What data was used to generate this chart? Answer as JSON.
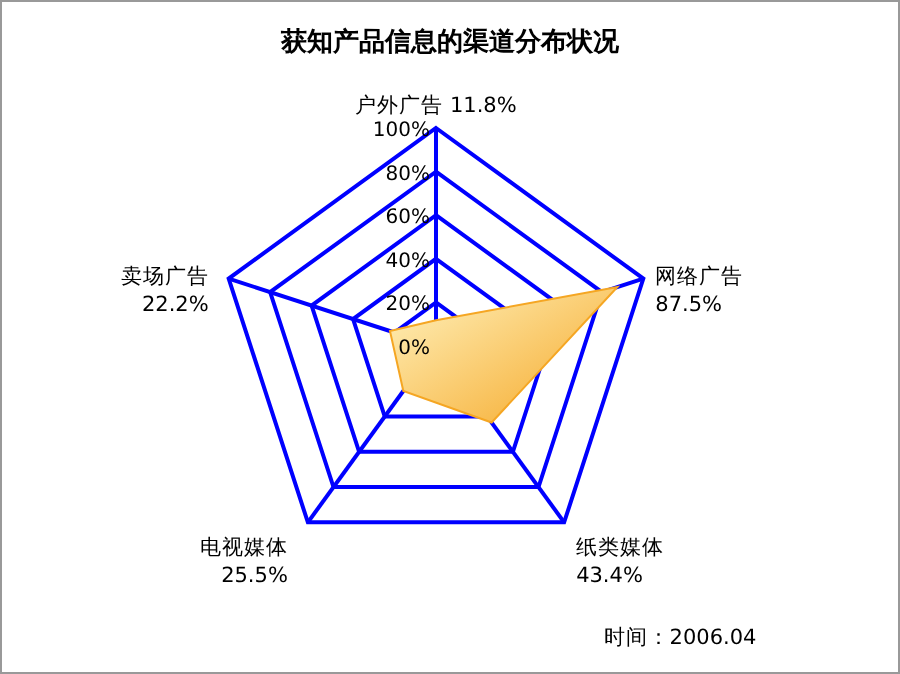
{
  "chart_data": {
    "type": "radar",
    "title": "获知产品信息的渠道分布状况",
    "categories": [
      "户外广告 11.8%",
      "网络广告 87.5%",
      "纸类媒体 43.4%",
      "电视媒体 25.5%",
      "卖场广告 22.2%"
    ],
    "series": [
      {
        "color": "#f5a623",
        "values": [
          11.8,
          87.5,
          43.4,
          25.5,
          22.2
        ]
      }
    ],
    "ylim": [
      0,
      100
    ],
    "yticks": [
      {
        "value": 0,
        "label": "0%"
      },
      {
        "value": 20,
        "label": "20%"
      },
      {
        "value": 40,
        "label": "40%"
      },
      {
        "value": 60,
        "label": "60%"
      },
      {
        "value": 80,
        "label": "80%"
      },
      {
        "value": 100,
        "label": "100%"
      }
    ],
    "grid": true,
    "annotations": [
      "时间：2006.04"
    ]
  }
}
